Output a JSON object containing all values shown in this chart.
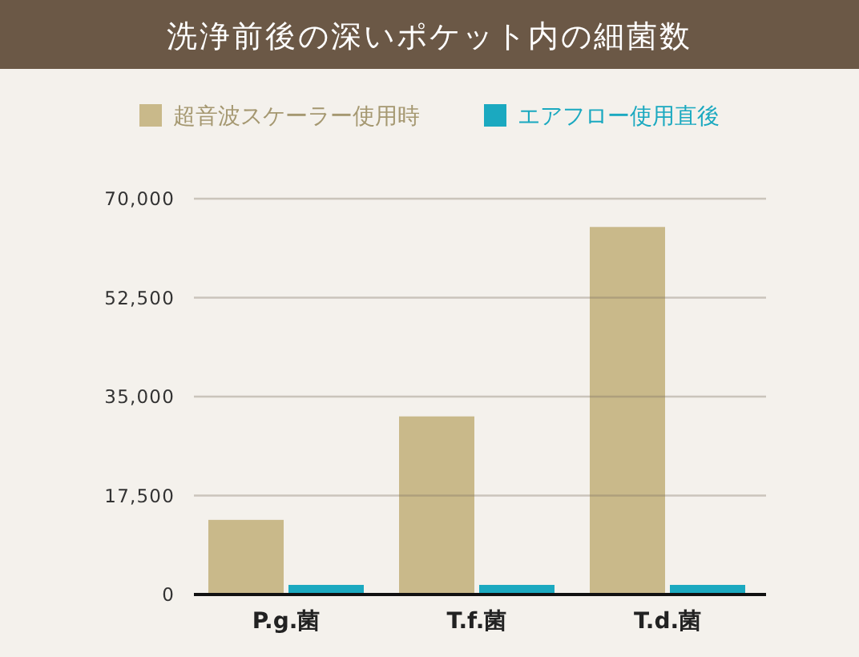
{
  "chart_data": {
    "type": "bar",
    "title": "洗浄前後の深いポケット内の細菌数",
    "categories": [
      "P.g.菌",
      "T.f.菌",
      "T.d.菌"
    ],
    "series": [
      {
        "name": "超音波スケーラー使用時",
        "color": "#c9b98a",
        "values": [
          13200,
          31500,
          65000
        ]
      },
      {
        "name": "エアフロー使用直後",
        "color": "#1ba9c0",
        "values": [
          1700,
          1700,
          1700
        ]
      }
    ],
    "ylim": [
      0,
      70000
    ],
    "yticks": [
      0,
      {
        "value": 17500,
        "label": "17,500"
      },
      {
        "value": 35000,
        "label": "35,000"
      },
      {
        "value": 52500,
        "label": "52,500"
      },
      {
        "value": 70000,
        "label": "70,000"
      }
    ],
    "grid": "y",
    "legend": "top"
  }
}
